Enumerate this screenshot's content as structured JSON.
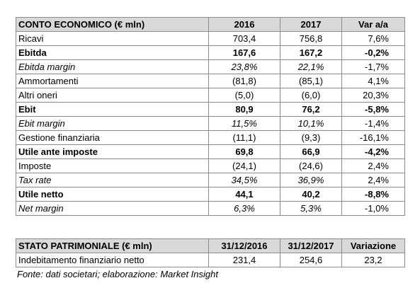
{
  "income_table": {
    "headers": [
      "CONTO ECONOMICO (€ mln)",
      "2016",
      "2017",
      "Var a/a"
    ],
    "rows": [
      {
        "label": "Ricavi",
        "v2016": "703,4",
        "v2017": "756,8",
        "var": "7,6%",
        "style": "normal"
      },
      {
        "label": "Ebitda",
        "v2016": "167,6",
        "v2017": "167,2",
        "var": "-0,2%",
        "style": "bold"
      },
      {
        "label": "Ebitda margin",
        "v2016": "23,8%",
        "v2017": "22,1%",
        "var": "-1,7%",
        "style": "italic"
      },
      {
        "label": "Ammortamenti",
        "v2016": "(81,8)",
        "v2017": "(85,1)",
        "var": "4,1%",
        "style": "normal"
      },
      {
        "label": "Altri oneri",
        "v2016": "(5,0)",
        "v2017": "(6,0)",
        "var": "20,3%",
        "style": "normal"
      },
      {
        "label": "Ebit",
        "v2016": "80,9",
        "v2017": "76,2",
        "var": "-5,8%",
        "style": "bold"
      },
      {
        "label": "Ebit margin",
        "v2016": "11,5%",
        "v2017": "10,1%",
        "var": "-1,4%",
        "style": "italic"
      },
      {
        "label": "Gestione finanziaria",
        "v2016": "(11,1)",
        "v2017": "(9,3)",
        "var": "-16,1%",
        "style": "normal"
      },
      {
        "label": "Utile ante imposte",
        "v2016": "69,8",
        "v2017": "66,9",
        "var": "-4,2%",
        "style": "bold"
      },
      {
        "label": "Imposte",
        "v2016": "(24,1)",
        "v2017": "(24,6)",
        "var": "2,4%",
        "style": "normal"
      },
      {
        "label": "Tax rate",
        "v2016": "34,5%",
        "v2017": "36,9%",
        "var": "2,4%",
        "style": "italic"
      },
      {
        "label": "Utile netto",
        "v2016": "44,1",
        "v2017": "40,2",
        "var": "-8,8%",
        "style": "bold"
      },
      {
        "label": "Net margin",
        "v2016": "6,3%",
        "v2017": "5,3%",
        "var": "-1,0%",
        "style": "italic"
      }
    ]
  },
  "balance_table": {
    "headers": [
      "STATO PATRIMONIALE (€ mln)",
      "31/12/2016",
      "31/12/2017",
      "Variazione"
    ],
    "rows": [
      {
        "label": "Indebitamento finanziario netto",
        "v2016": "231,4",
        "v2017": "254,6",
        "var": "23,2"
      }
    ]
  },
  "source_note": "Fonte: dati societari; elaborazione: Market Insight"
}
